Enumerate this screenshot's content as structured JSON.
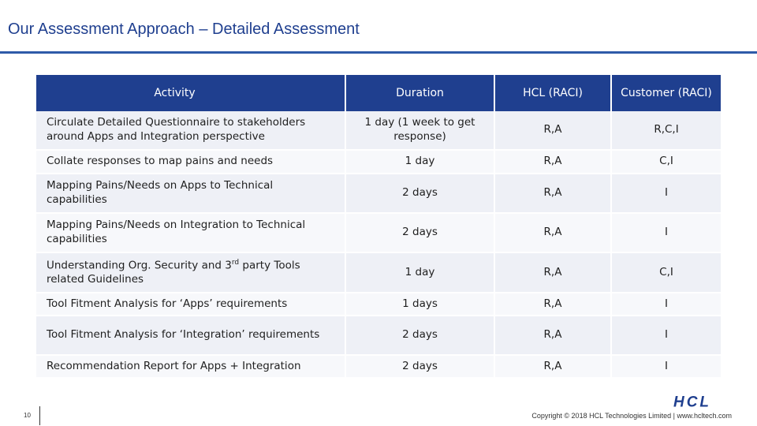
{
  "slide": {
    "title": "Our Assessment Approach – Detailed Assessment",
    "page_number": "10",
    "copyright": "Copyright © 2018 HCL Technologies Limited | www.hcltech.com",
    "logo_text": "HCL"
  },
  "table": {
    "headers": {
      "activity": "Activity",
      "duration": "Duration",
      "hcl": "HCL (RACI)",
      "customer": "Customer (RACI)"
    },
    "rows": [
      {
        "activity": "Circulate Detailed Questionnaire to stakeholders around Apps and Integration perspective",
        "duration": "1 day (1 week to get response)",
        "hcl": "R,A",
        "customer": "R,C,I"
      },
      {
        "activity": "Collate responses to map pains and needs",
        "duration": "1 day",
        "hcl": "R,A",
        "customer": "C,I"
      },
      {
        "activity": "Mapping Pains/Needs on Apps to Technical capabilities",
        "duration": "2 days",
        "hcl": "R,A",
        "customer": "I"
      },
      {
        "activity": "Mapping Pains/Needs on Integration to Technical capabilities",
        "duration": "2 days",
        "hcl": "R,A",
        "customer": "I"
      },
      {
        "activity_pre": "Understanding Org. Security and 3",
        "activity_sup": "rd",
        "activity_post": " party Tools related Guidelines",
        "duration": "1 day",
        "hcl": "R,A",
        "customer": "C,I"
      },
      {
        "activity": "Tool Fitment Analysis for ‘Apps’ requirements",
        "duration": "1 days",
        "hcl": "R,A",
        "customer": "I"
      },
      {
        "activity": "Tool Fitment Analysis for ‘Integration’ requirements",
        "duration": "2 days",
        "hcl": "R,A",
        "customer": "I"
      },
      {
        "activity": "Recommendation Report for Apps + Integration",
        "duration": "2 days",
        "hcl": "R,A",
        "customer": "I"
      }
    ]
  },
  "colors": {
    "header_bg": "#1f3f8f",
    "title_text": "#1f3f8f",
    "rule": "#2e5aa8",
    "row_odd": "#eef0f6",
    "row_even": "#f7f8fb"
  }
}
